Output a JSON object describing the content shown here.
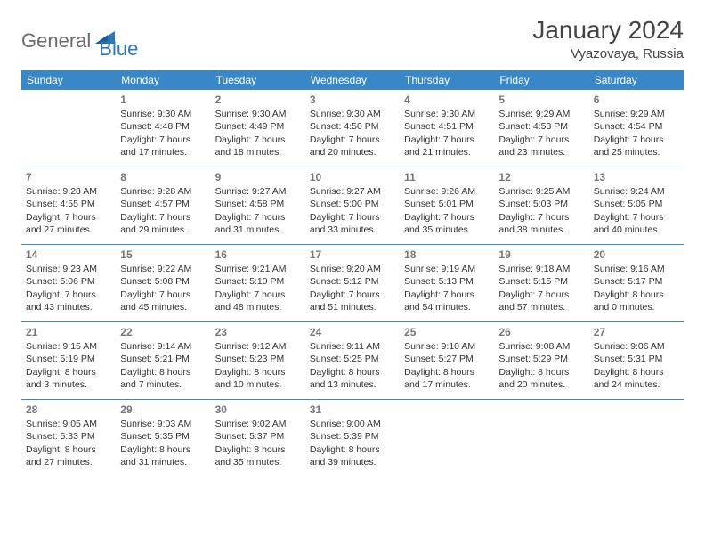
{
  "logo": {
    "word1": "General",
    "word2": "Blue"
  },
  "header": {
    "title": "January 2024",
    "location": "Vyazovaya, Russia"
  },
  "colors": {
    "accent": "#3a87c7",
    "text": "#333333",
    "logo_gray": "#6b6b6b",
    "logo_blue": "#2e77b8"
  },
  "daynames": [
    "Sunday",
    "Monday",
    "Tuesday",
    "Wednesday",
    "Thursday",
    "Friday",
    "Saturday"
  ],
  "firstDayOffset": 1,
  "days": [
    {
      "n": 1,
      "sunrise": "9:30 AM",
      "sunset": "4:48 PM",
      "daylight": "7 hours and 17 minutes."
    },
    {
      "n": 2,
      "sunrise": "9:30 AM",
      "sunset": "4:49 PM",
      "daylight": "7 hours and 18 minutes."
    },
    {
      "n": 3,
      "sunrise": "9:30 AM",
      "sunset": "4:50 PM",
      "daylight": "7 hours and 20 minutes."
    },
    {
      "n": 4,
      "sunrise": "9:30 AM",
      "sunset": "4:51 PM",
      "daylight": "7 hours and 21 minutes."
    },
    {
      "n": 5,
      "sunrise": "9:29 AM",
      "sunset": "4:53 PM",
      "daylight": "7 hours and 23 minutes."
    },
    {
      "n": 6,
      "sunrise": "9:29 AM",
      "sunset": "4:54 PM",
      "daylight": "7 hours and 25 minutes."
    },
    {
      "n": 7,
      "sunrise": "9:28 AM",
      "sunset": "4:55 PM",
      "daylight": "7 hours and 27 minutes."
    },
    {
      "n": 8,
      "sunrise": "9:28 AM",
      "sunset": "4:57 PM",
      "daylight": "7 hours and 29 minutes."
    },
    {
      "n": 9,
      "sunrise": "9:27 AM",
      "sunset": "4:58 PM",
      "daylight": "7 hours and 31 minutes."
    },
    {
      "n": 10,
      "sunrise": "9:27 AM",
      "sunset": "5:00 PM",
      "daylight": "7 hours and 33 minutes."
    },
    {
      "n": 11,
      "sunrise": "9:26 AM",
      "sunset": "5:01 PM",
      "daylight": "7 hours and 35 minutes."
    },
    {
      "n": 12,
      "sunrise": "9:25 AM",
      "sunset": "5:03 PM",
      "daylight": "7 hours and 38 minutes."
    },
    {
      "n": 13,
      "sunrise": "9:24 AM",
      "sunset": "5:05 PM",
      "daylight": "7 hours and 40 minutes."
    },
    {
      "n": 14,
      "sunrise": "9:23 AM",
      "sunset": "5:06 PM",
      "daylight": "7 hours and 43 minutes."
    },
    {
      "n": 15,
      "sunrise": "9:22 AM",
      "sunset": "5:08 PM",
      "daylight": "7 hours and 45 minutes."
    },
    {
      "n": 16,
      "sunrise": "9:21 AM",
      "sunset": "5:10 PM",
      "daylight": "7 hours and 48 minutes."
    },
    {
      "n": 17,
      "sunrise": "9:20 AM",
      "sunset": "5:12 PM",
      "daylight": "7 hours and 51 minutes."
    },
    {
      "n": 18,
      "sunrise": "9:19 AM",
      "sunset": "5:13 PM",
      "daylight": "7 hours and 54 minutes."
    },
    {
      "n": 19,
      "sunrise": "9:18 AM",
      "sunset": "5:15 PM",
      "daylight": "7 hours and 57 minutes."
    },
    {
      "n": 20,
      "sunrise": "9:16 AM",
      "sunset": "5:17 PM",
      "daylight": "8 hours and 0 minutes."
    },
    {
      "n": 21,
      "sunrise": "9:15 AM",
      "sunset": "5:19 PM",
      "daylight": "8 hours and 3 minutes."
    },
    {
      "n": 22,
      "sunrise": "9:14 AM",
      "sunset": "5:21 PM",
      "daylight": "8 hours and 7 minutes."
    },
    {
      "n": 23,
      "sunrise": "9:12 AM",
      "sunset": "5:23 PM",
      "daylight": "8 hours and 10 minutes."
    },
    {
      "n": 24,
      "sunrise": "9:11 AM",
      "sunset": "5:25 PM",
      "daylight": "8 hours and 13 minutes."
    },
    {
      "n": 25,
      "sunrise": "9:10 AM",
      "sunset": "5:27 PM",
      "daylight": "8 hours and 17 minutes."
    },
    {
      "n": 26,
      "sunrise": "9:08 AM",
      "sunset": "5:29 PM",
      "daylight": "8 hours and 20 minutes."
    },
    {
      "n": 27,
      "sunrise": "9:06 AM",
      "sunset": "5:31 PM",
      "daylight": "8 hours and 24 minutes."
    },
    {
      "n": 28,
      "sunrise": "9:05 AM",
      "sunset": "5:33 PM",
      "daylight": "8 hours and 27 minutes."
    },
    {
      "n": 29,
      "sunrise": "9:03 AM",
      "sunset": "5:35 PM",
      "daylight": "8 hours and 31 minutes."
    },
    {
      "n": 30,
      "sunrise": "9:02 AM",
      "sunset": "5:37 PM",
      "daylight": "8 hours and 35 minutes."
    },
    {
      "n": 31,
      "sunrise": "9:00 AM",
      "sunset": "5:39 PM",
      "daylight": "8 hours and 39 minutes."
    }
  ],
  "labels": {
    "sunrise": "Sunrise:",
    "sunset": "Sunset:",
    "daylight": "Daylight:"
  }
}
